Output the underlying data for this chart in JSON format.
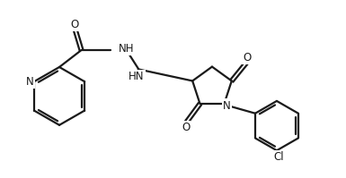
{
  "line_color": "#1a1a1a",
  "bg_color": "#ffffff",
  "line_width": 1.6,
  "font_size": 8.5,
  "figsize": [
    3.85,
    1.99
  ],
  "dpi": 100,
  "xlim": [
    0,
    9.5
  ],
  "ylim": [
    0,
    5.0
  ]
}
